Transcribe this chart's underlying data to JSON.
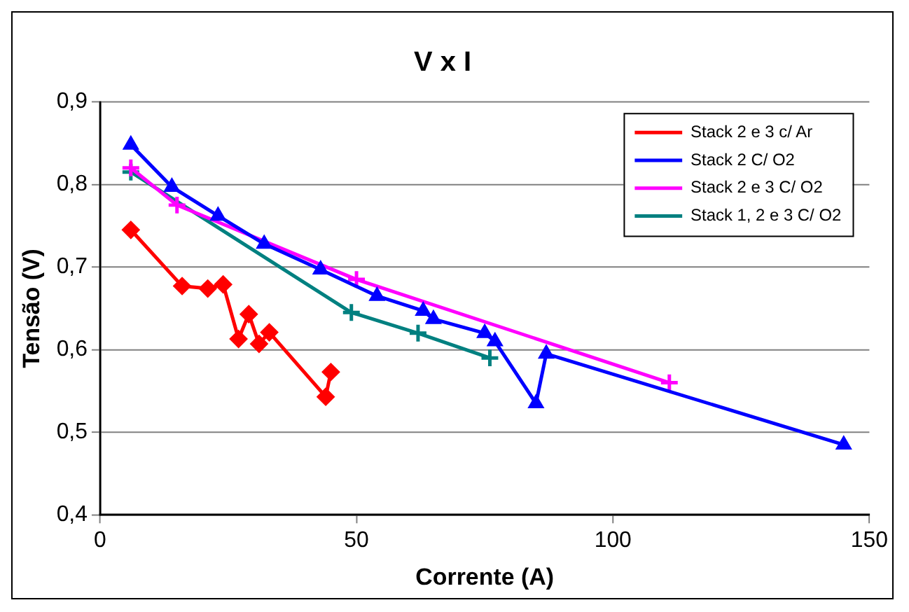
{
  "chart_data": {
    "type": "line",
    "title": "V x I",
    "xlabel": "Corrente (A)",
    "ylabel": "Tensão (V)",
    "xlim": [
      0,
      150
    ],
    "xticks": [
      0,
      50,
      100,
      150
    ],
    "ylim": [
      0.4,
      0.9
    ],
    "yticks": [
      {
        "value": 0.4,
        "label": "0,4"
      },
      {
        "value": 0.5,
        "label": "0,5"
      },
      {
        "value": 0.6,
        "label": "0,6"
      },
      {
        "value": 0.7,
        "label": "0,7"
      },
      {
        "value": 0.8,
        "label": "0,8"
      },
      {
        "value": 0.9,
        "label": "0,9"
      }
    ],
    "grid": "y",
    "legend": "top right",
    "series": [
      {
        "name": "Stack 2 e 3 c/ Ar",
        "color": "#ff0000",
        "marker": "diamond",
        "x": [
          6,
          16,
          21,
          24,
          27,
          29,
          31,
          33,
          44,
          45
        ],
        "values": [
          0.745,
          0.677,
          0.674,
          0.679,
          0.613,
          0.643,
          0.607,
          0.621,
          0.543,
          0.573
        ]
      },
      {
        "name": "Stack 2 C/ O2",
        "color": "#0000ff",
        "marker": "triangle",
        "x": [
          6,
          14,
          23,
          32,
          43,
          54,
          63,
          65,
          75,
          77,
          85,
          87,
          145
        ],
        "values": [
          0.848,
          0.797,
          0.762,
          0.728,
          0.697,
          0.665,
          0.647,
          0.637,
          0.62,
          0.61,
          0.535,
          0.595,
          0.485
        ]
      },
      {
        "name": "Stack 2 e 3 C/ O2",
        "color": "#ff00ff",
        "marker": "cross",
        "x": [
          6,
          15,
          50,
          111
        ],
        "values": [
          0.82,
          0.775,
          0.685,
          0.56
        ]
      },
      {
        "name": "Stack 1, 2 e 3 C/ O2",
        "color": "#008080",
        "marker": "cross",
        "x": [
          6,
          49,
          62,
          76
        ],
        "values": [
          0.815,
          0.645,
          0.62,
          0.59
        ]
      }
    ]
  }
}
